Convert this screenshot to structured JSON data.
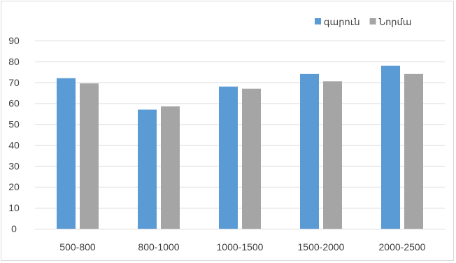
{
  "chart_data": {
    "type": "bar",
    "categories": [
      "500-800",
      "800-1000",
      "1000-1500",
      "1500-2000",
      "2000-2500"
    ],
    "series": [
      {
        "name": "գարուն",
        "color": "#5b9bd5",
        "values": [
          72,
          57,
          68,
          74,
          78
        ]
      },
      {
        "name": "Նորմա",
        "color": "#a5a5a5",
        "values": [
          69.5,
          58.5,
          67,
          70.5,
          74
        ]
      }
    ],
    "ylim": [
      0,
      90
    ],
    "yticks": [
      0,
      10,
      20,
      30,
      40,
      50,
      60,
      70,
      80,
      90
    ],
    "grid": true,
    "grid_color": "#d9d9d9",
    "legend_position": "top-right",
    "title": "",
    "xlabel": "",
    "ylabel": ""
  }
}
